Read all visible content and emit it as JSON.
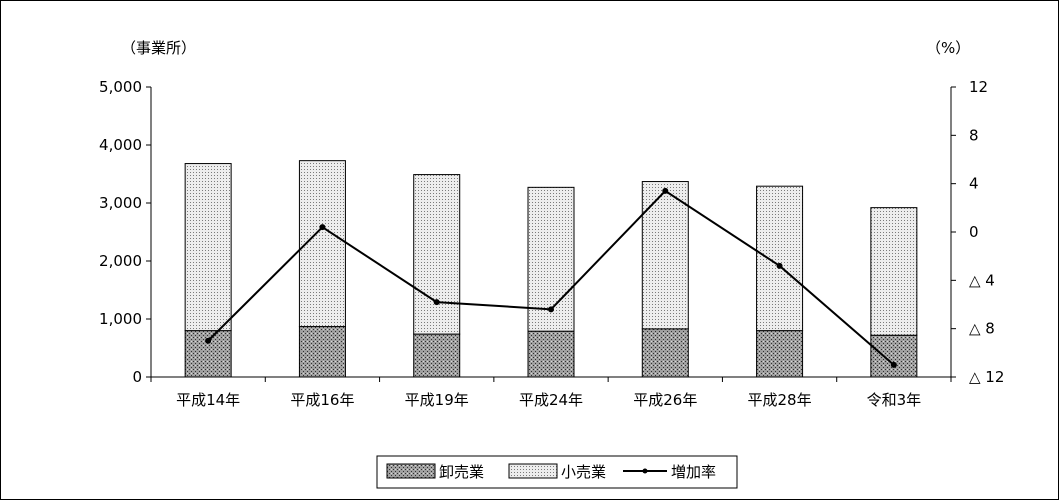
{
  "chart_data": {
    "type": "bar",
    "categories": [
      "平成14年",
      "平成16年",
      "平成19年",
      "平成24年",
      "平成26年",
      "平成28年",
      "令和3年"
    ],
    "series": [
      {
        "name": "卸売業",
        "type": "bar",
        "stack": "total",
        "axis": "left",
        "values": [
          800,
          870,
          740,
          790,
          830,
          800,
          720
        ]
      },
      {
        "name": "小売業",
        "type": "bar",
        "stack": "total",
        "axis": "left",
        "values": [
          2880,
          2860,
          2750,
          2480,
          2540,
          2490,
          2200
        ]
      },
      {
        "name": "増加率",
        "type": "line",
        "axis": "right",
        "values": [
          -9.0,
          0.4,
          -5.8,
          -6.4,
          3.4,
          -2.8,
          -11.0
        ]
      }
    ],
    "y_left": {
      "label": "（事業所）",
      "min": 0,
      "max": 5000,
      "ticks": [
        0,
        1000,
        2000,
        3000,
        4000,
        5000
      ],
      "tick_labels": [
        "0",
        "1,000",
        "2,000",
        "3,000",
        "4,000",
        "5,000"
      ]
    },
    "y_right": {
      "label": "（%）",
      "min": -12,
      "max": 12,
      "ticks": [
        12,
        8,
        4,
        0,
        -4,
        -8,
        -12
      ],
      "tick_labels": [
        "12",
        "8",
        "4",
        "0",
        "△ 4",
        "△ 8",
        "△ 12"
      ]
    },
    "legend_position": "bottom",
    "grid": false,
    "colors": {
      "wholesale": "#9a9a9a",
      "retail": "#e8e8e8",
      "line": "#000000"
    }
  }
}
